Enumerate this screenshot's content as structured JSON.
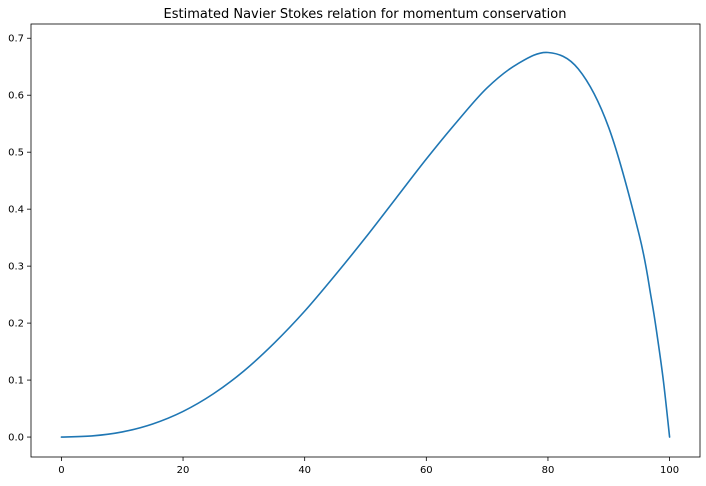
{
  "chart_data": {
    "type": "line",
    "title": "Estimated Navier Stokes relation for momentum conservation",
    "xlabel": "",
    "ylabel": "",
    "xlim": [
      -5,
      105
    ],
    "ylim": [
      -0.035,
      0.725
    ],
    "x_ticks": [
      0,
      20,
      40,
      60,
      80,
      100
    ],
    "y_ticks": [
      0.0,
      0.1,
      0.2,
      0.3,
      0.4,
      0.5,
      0.6,
      0.7
    ],
    "x_tick_labels": [
      "0",
      "20",
      "40",
      "60",
      "80",
      "100"
    ],
    "y_tick_labels": [
      "0.0",
      "0.1",
      "0.2",
      "0.3",
      "0.4",
      "0.5",
      "0.6",
      "0.7"
    ],
    "grid": false,
    "legend": "none",
    "series": [
      {
        "color": "#1f77b4",
        "x": [
          0,
          5,
          10,
          15,
          20,
          25,
          30,
          35,
          40,
          45,
          50,
          55,
          60,
          65,
          70,
          75,
          80,
          85,
          90,
          95,
          97,
          98,
          99,
          100
        ],
        "y": [
          0.0,
          0.002,
          0.009,
          0.023,
          0.045,
          0.076,
          0.116,
          0.165,
          0.221,
          0.284,
          0.35,
          0.419,
          0.488,
          0.553,
          0.613,
          0.655,
          0.675,
          0.646,
          0.543,
          0.355,
          0.243,
          0.175,
          0.097,
          0.0
        ]
      }
    ]
  }
}
